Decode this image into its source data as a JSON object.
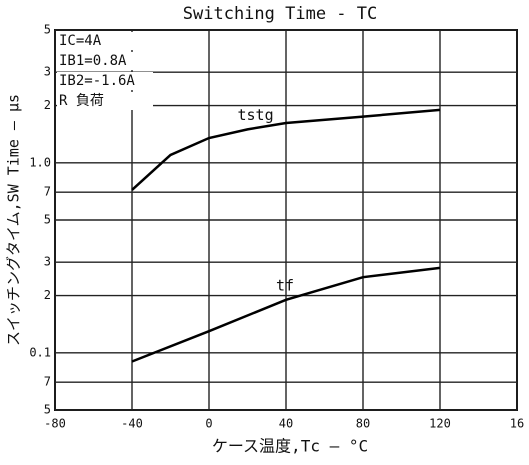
{
  "chart_data": {
    "type": "line",
    "title": "Switching Time - TC",
    "x_label": "ケース温度,Tc — °C",
    "y_label": "スイッチングタイム,SW Time — μs",
    "annotations": [
      "IC=4A",
      "IB1=0.8A",
      "IB2=-1.6A",
      "R 負荷"
    ],
    "log_y": true,
    "grid": true,
    "xlim": [
      -80,
      160
    ],
    "xticks": [
      -80,
      -40,
      0,
      40,
      80,
      120,
      {
        "value": 160,
        "label": "16"
      }
    ],
    "ylim": [
      0.05,
      5
    ],
    "yticks": [
      5,
      3,
      2,
      {
        "value": 1,
        "label": "1.0"
      },
      {
        "value": 0.7,
        "label": "7"
      },
      {
        "value": 0.5,
        "label": "5"
      },
      {
        "value": 0.3,
        "label": "3"
      },
      {
        "value": 0.2,
        "label": "2"
      },
      0.1,
      {
        "value": 0.07,
        "label": "7"
      },
      {
        "value": 0.05,
        "label": "5"
      }
    ],
    "series": [
      {
        "name": "tstg",
        "color": "#000000",
        "x": [
          -40,
          -20,
          0,
          20,
          40,
          80,
          120
        ],
        "values": [
          0.72,
          1.1,
          1.35,
          1.5,
          1.62,
          1.75,
          1.9
        ]
      },
      {
        "name": "tf",
        "color": "#000000",
        "x": [
          -40,
          0,
          40,
          80,
          120
        ],
        "values": [
          0.09,
          0.13,
          0.19,
          0.25,
          0.28
        ]
      }
    ]
  }
}
